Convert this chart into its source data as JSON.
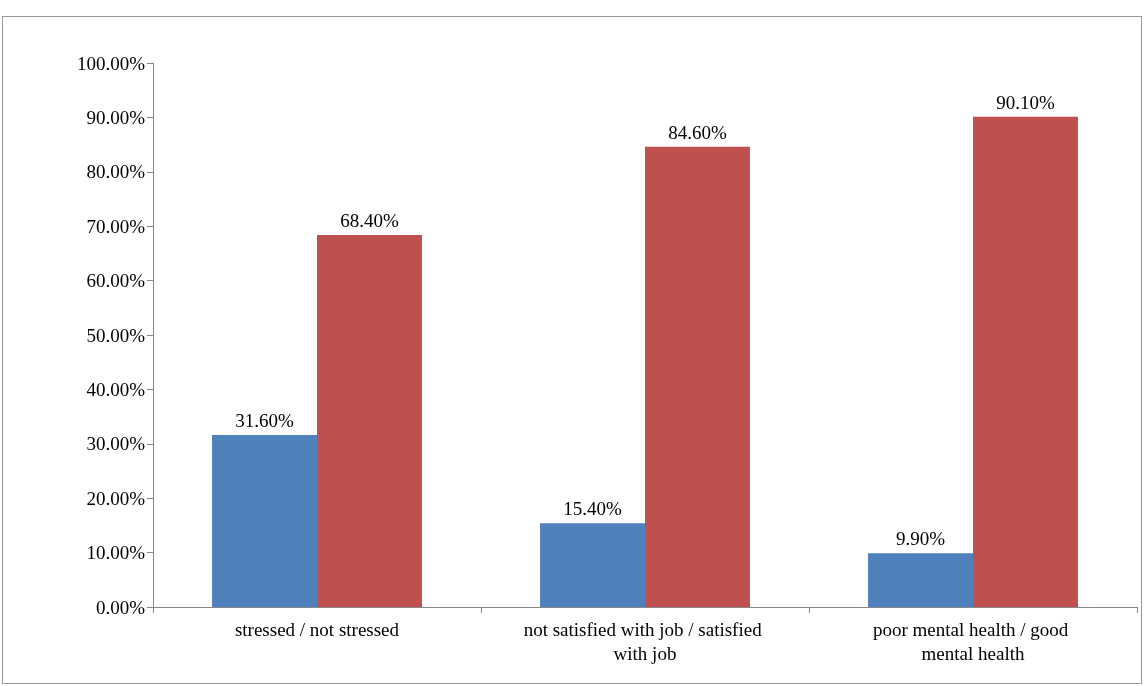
{
  "chart_data": {
    "type": "bar",
    "categories": [
      "stressed / not stressed",
      "not satisfied with job / satisfied with job",
      "poor mental health / good mental health"
    ],
    "series": [
      {
        "color": "#4f81bd",
        "values": [
          31.6,
          15.4,
          9.9
        ],
        "value_labels": [
          "31.60%",
          "15.40%",
          "9.90%"
        ]
      },
      {
        "color": "#c0504d",
        "values": [
          68.4,
          84.6,
          90.1
        ],
        "value_labels": [
          "68.40%",
          "84.60%",
          "90.10%"
        ]
      }
    ],
    "ylim": [
      0,
      100
    ],
    "yticks": [
      {
        "value": 0,
        "label": "0.00%"
      },
      {
        "value": 10,
        "label": "10.00%"
      },
      {
        "value": 20,
        "label": "20.00%"
      },
      {
        "value": 30,
        "label": "30.00%"
      },
      {
        "value": 40,
        "label": "40.00%"
      },
      {
        "value": 50,
        "label": "50.00%"
      },
      {
        "value": 60,
        "label": "60.00%"
      },
      {
        "value": 70,
        "label": "70.00%"
      },
      {
        "value": 80,
        "label": "80.00%"
      },
      {
        "value": 90,
        "label": "90.00%"
      },
      {
        "value": 100,
        "label": "100.00%"
      }
    ],
    "grid": false
  }
}
